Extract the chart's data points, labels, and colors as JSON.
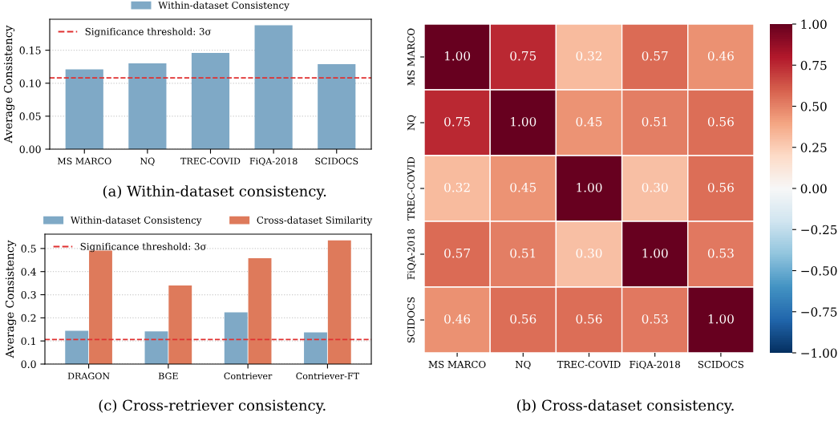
{
  "chart_data": [
    {
      "type": "bar",
      "ylabel": "Average Consistency",
      "categories": [
        "MS MARCO",
        "NQ",
        "TREC-COVID",
        "FiQA-2018",
        "SCIDOCS"
      ],
      "series": [
        {
          "name": "Within-dataset Consistency",
          "color": "#7fa9c6",
          "values": [
            0.121,
            0.13,
            0.146,
            0.188,
            0.129
          ]
        }
      ],
      "ylim": [
        0,
        0.197
      ],
      "yticks": [
        {
          "value": 0,
          "label": "0.00"
        },
        {
          "value": 0.05,
          "label": "0.05"
        },
        {
          "value": 0.1,
          "label": "0.10"
        },
        {
          "value": 0.15,
          "label": "0.15"
        }
      ],
      "ref_lines": [
        {
          "axis": "y",
          "value": 0.108,
          "color": "#e03030",
          "line_style": "dashed"
        }
      ],
      "grid": "y",
      "legend": "top",
      "annotations": [
        "Significance threshold: 3σ",
        "(a) Within-dataset consistency."
      ]
    },
    {
      "type": "bar",
      "ylabel": "Average Consistency",
      "categories": [
        "DRAGON",
        "BGE",
        "Contriever",
        "Contriever-FT"
      ],
      "series": [
        {
          "name": "Within-dataset Consistency",
          "color": "#7fa9c6",
          "values": [
            0.144,
            0.141,
            0.224,
            0.137
          ]
        },
        {
          "name": "Cross-dataset Similarity",
          "color": "#de7a5b",
          "values": [
            0.491,
            0.34,
            0.458,
            0.535
          ]
        }
      ],
      "ylim": [
        0,
        0.562
      ],
      "yticks": [
        {
          "value": 0,
          "label": "0.0"
        },
        0.1,
        0.2,
        0.3,
        0.4,
        0.5
      ],
      "ref_lines": [
        {
          "axis": "y",
          "value": 0.106,
          "color": "#e03030",
          "line_style": "dashed"
        }
      ],
      "grid": "y",
      "legend": "top",
      "annotations": [
        "Significance threshold: 3σ",
        "(c) Cross-retriever consistency."
      ]
    },
    {
      "type": "heatmap",
      "categories": [
        "MS MARCO",
        "NQ",
        "TREC-COVID",
        "FiQA-2018",
        "SCIDOCS"
      ],
      "y_categories": [
        "MS MARCO",
        "NQ",
        "TREC-COVID",
        "FiQA-2018",
        "SCIDOCS"
      ],
      "cells": [
        [
          1.0,
          0.75,
          0.32,
          0.57,
          0.46
        ],
        [
          0.75,
          1.0,
          0.45,
          0.51,
          0.56
        ],
        [
          0.32,
          0.45,
          1.0,
          0.3,
          0.56
        ],
        [
          0.57,
          0.51,
          0.3,
          1.0,
          0.53
        ],
        [
          0.46,
          0.56,
          0.56,
          0.53,
          1.0
        ]
      ],
      "cell_labels": [
        [
          "1.00",
          "0.75",
          "0.32",
          "0.57",
          "0.46"
        ],
        [
          "0.75",
          "1.00",
          "0.45",
          "0.51",
          "0.56"
        ],
        [
          "0.32",
          "0.45",
          "1.00",
          "0.30",
          "0.56"
        ],
        [
          "0.57",
          "0.51",
          "0.30",
          "1.00",
          "0.53"
        ],
        [
          "0.46",
          "0.56",
          "0.56",
          "0.53",
          "1.00"
        ]
      ],
      "clim": [
        -1,
        1
      ],
      "cticks": [
        {
          "value": -1,
          "label": "−1.00"
        },
        {
          "value": -0.75,
          "label": "−0.75"
        },
        {
          "value": -0.5,
          "label": "−0.50"
        },
        {
          "value": -0.25,
          "label": "−0.25"
        },
        {
          "value": 0,
          "label": "0.00"
        },
        {
          "value": 0.25,
          "label": "0.25"
        },
        {
          "value": 0.5,
          "label": "0.50"
        },
        {
          "value": 0.75,
          "label": "0.75"
        },
        {
          "value": 1,
          "label": "1.00"
        }
      ],
      "annotations": [
        "(b) Cross-dataset consistency."
      ]
    }
  ]
}
